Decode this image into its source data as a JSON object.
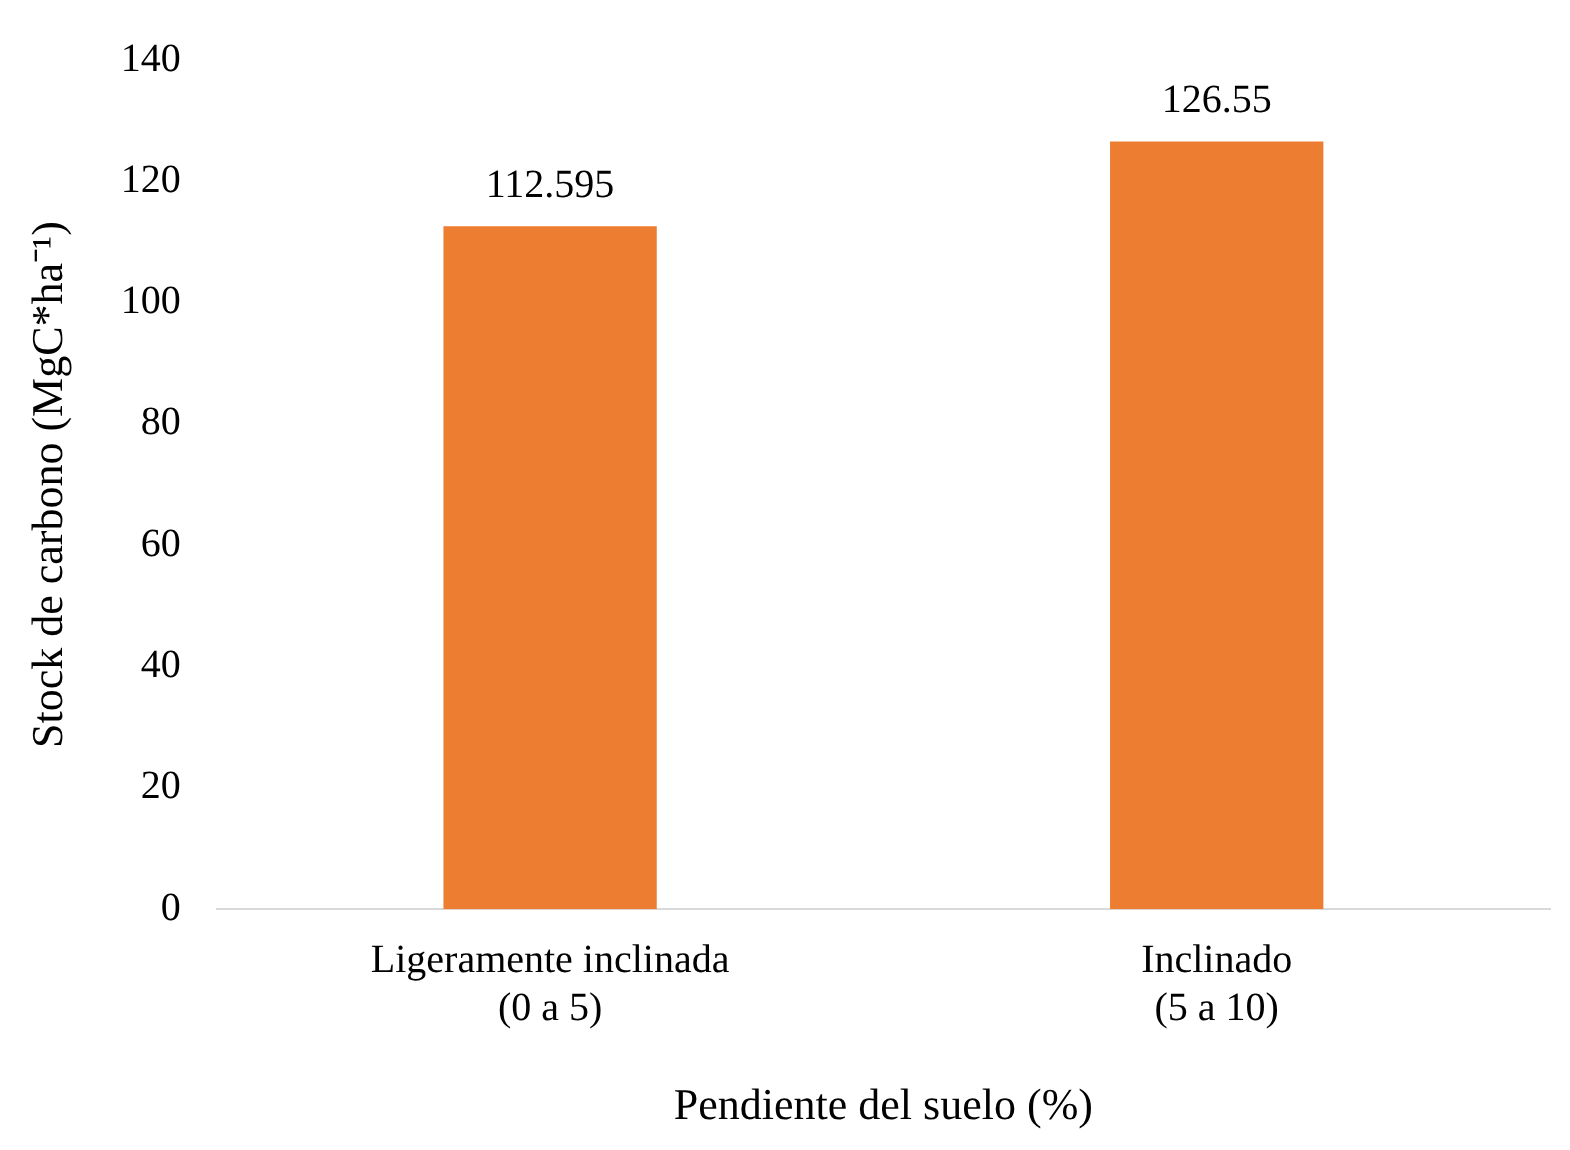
{
  "chart_data": {
    "type": "bar",
    "xlabel": "Pendiente del suelo (%)",
    "ylabel": "Stock de carbono (MgC*ha⁻¹)",
    "categories": [
      "Ligeramente inclinada\n(0 a 5)",
      "Inclinado\n(5 a 10)"
    ],
    "values": [
      112.595,
      126.55
    ],
    "color": "#ed7d31",
    "ylim": [
      0,
      140
    ],
    "yticks": [
      0,
      20,
      40,
      60,
      80,
      100,
      120,
      140
    ],
    "grid": false,
    "data_labels": true,
    "legend": false
  }
}
